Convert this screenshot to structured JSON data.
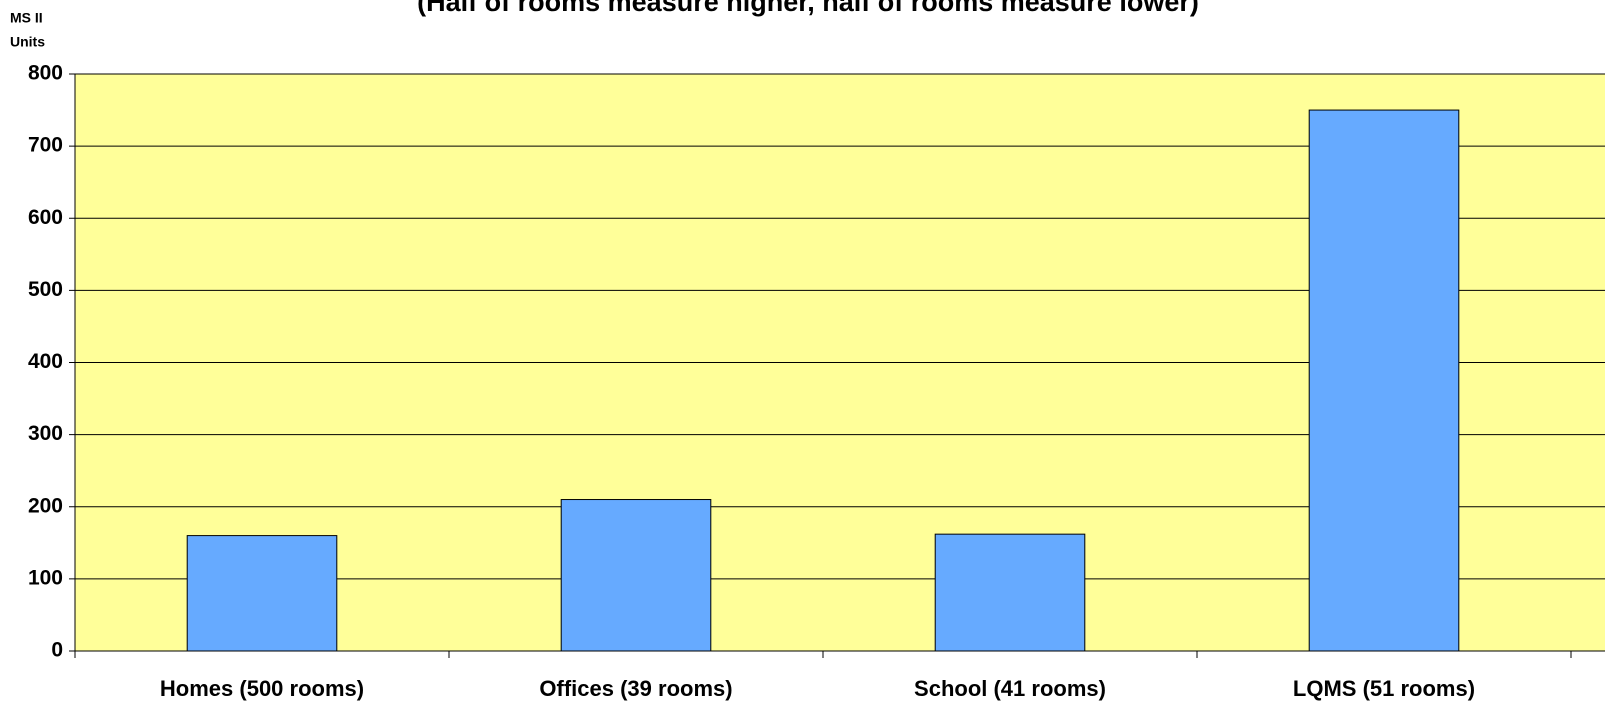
{
  "chart_data": {
    "type": "bar",
    "subtitle": "(Half of rooms measure higher, half of rooms measure lower)",
    "y_label": [
      "MS II",
      "Units"
    ],
    "categories": [
      "Homes (500 rooms)",
      "Offices (39 rooms)",
      "School (41 rooms)",
      "LQMS (51 rooms)"
    ],
    "values": [
      160,
      210,
      162,
      750
    ],
    "color": "#66aaff",
    "plot_color": "#ffff99",
    "ylim": [
      0,
      800
    ],
    "yticks": [
      0,
      100,
      200,
      300,
      400,
      500,
      600,
      700,
      800
    ],
    "grid": true
  }
}
